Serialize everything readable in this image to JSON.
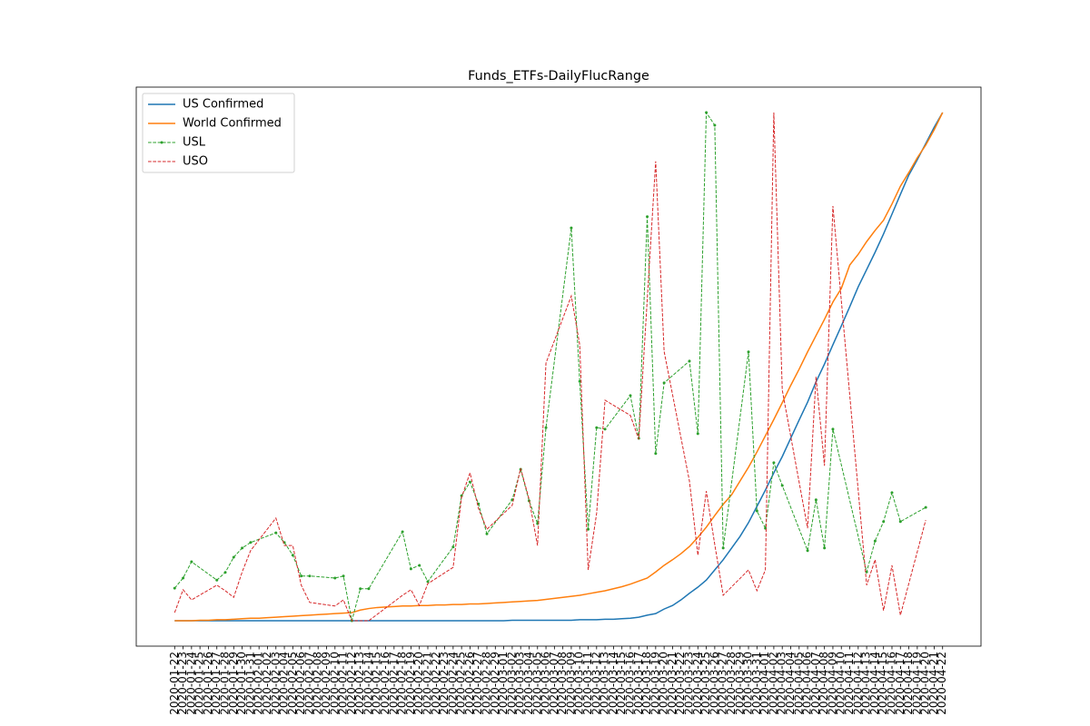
{
  "chart_data": {
    "type": "line",
    "title": "Funds_ETFs-DailyFlucRange",
    "categories": [
      "2020-01-22",
      "2020-01-23",
      "2020-01-24",
      "2020-01-25",
      "2020-01-26",
      "2020-01-27",
      "2020-01-28",
      "2020-01-29",
      "2020-01-30",
      "2020-01-31",
      "2020-02-01",
      "2020-02-02",
      "2020-02-03",
      "2020-02-04",
      "2020-02-05",
      "2020-02-06",
      "2020-02-07",
      "2020-02-08",
      "2020-02-09",
      "2020-02-10",
      "2020-02-11",
      "2020-02-12",
      "2020-02-13",
      "2020-02-14",
      "2020-02-15",
      "2020-02-16",
      "2020-02-17",
      "2020-02-18",
      "2020-02-19",
      "2020-02-20",
      "2020-02-21",
      "2020-02-22",
      "2020-02-23",
      "2020-02-24",
      "2020-02-25",
      "2020-02-26",
      "2020-02-27",
      "2020-02-28",
      "2020-02-29",
      "2020-03-01",
      "2020-03-02",
      "2020-03-03",
      "2020-03-04",
      "2020-03-05",
      "2020-03-06",
      "2020-03-07",
      "2020-03-08",
      "2020-03-09",
      "2020-03-10",
      "2020-03-11",
      "2020-03-12",
      "2020-03-13",
      "2020-03-14",
      "2020-03-15",
      "2020-03-16",
      "2020-03-17",
      "2020-03-18",
      "2020-03-19",
      "2020-03-20",
      "2020-03-21",
      "2020-03-22",
      "2020-03-23",
      "2020-03-24",
      "2020-03-25",
      "2020-03-26",
      "2020-03-27",
      "2020-03-28",
      "2020-03-29",
      "2020-03-30",
      "2020-03-31",
      "2020-04-01",
      "2020-04-02",
      "2020-04-03",
      "2020-04-04",
      "2020-04-05",
      "2020-04-06",
      "2020-04-07",
      "2020-04-08",
      "2020-04-09",
      "2020-04-10",
      "2020-04-11",
      "2020-04-12",
      "2020-04-13",
      "2020-04-14",
      "2020-04-15",
      "2020-04-16",
      "2020-04-17",
      "2020-04-18",
      "2020-04-19",
      "2020-04-20",
      "2020-04-21",
      "2020-04-22"
    ],
    "ylim": [
      -5,
      105
    ],
    "legend": "upper left",
    "series": [
      {
        "name": "US Confirmed",
        "color": "#1f77b4",
        "style": "solid",
        "values": [
          0,
          0,
          0,
          0,
          0,
          0,
          0,
          0,
          0,
          0,
          0,
          0,
          0,
          0,
          0,
          0,
          0,
          0,
          0,
          0,
          0,
          0,
          0,
          0,
          0,
          0,
          0,
          0,
          0,
          0,
          0,
          0,
          0,
          0,
          0,
          0,
          0,
          0,
          0,
          0,
          0.1,
          0.1,
          0.1,
          0.1,
          0.1,
          0.1,
          0.1,
          0.1,
          0.2,
          0.2,
          0.2,
          0.3,
          0.3,
          0.4,
          0.5,
          0.7,
          1.1,
          1.4,
          2.3,
          3.0,
          4.1,
          5.4,
          6.6,
          8.0,
          10.0,
          12.0,
          14.3,
          16.6,
          19.3,
          22.5,
          25.7,
          29.1,
          32.3,
          35.9,
          39.5,
          43.0,
          47.0,
          50.5,
          54.3,
          58.0,
          61.8,
          65.7,
          69.1,
          72.5,
          76.1,
          80.0,
          83.9,
          87.7,
          90.7,
          93.9,
          97.1,
          100
        ]
      },
      {
        "name": "World Confirmed",
        "color": "#ff7f0e",
        "style": "solid",
        "values": [
          0,
          0,
          0,
          0.1,
          0.1,
          0.2,
          0.2,
          0.3,
          0.4,
          0.5,
          0.5,
          0.6,
          0.7,
          0.8,
          0.9,
          1.0,
          1.1,
          1.2,
          1.3,
          1.4,
          1.5,
          1.6,
          2.1,
          2.4,
          2.6,
          2.7,
          2.8,
          2.9,
          2.9,
          3.0,
          3.0,
          3.1,
          3.1,
          3.2,
          3.2,
          3.3,
          3.3,
          3.4,
          3.5,
          3.6,
          3.7,
          3.8,
          3.9,
          4.0,
          4.2,
          4.4,
          4.6,
          4.8,
          5.0,
          5.3,
          5.6,
          5.9,
          6.3,
          6.7,
          7.2,
          7.8,
          8.4,
          9.6,
          10.9,
          12.0,
          13.2,
          14.6,
          16.4,
          18.4,
          20.7,
          22.9,
          24.8,
          27.5,
          30.2,
          33.2,
          36.4,
          39.6,
          42.9,
          46.3,
          49.5,
          52.9,
          56.1,
          59.3,
          62.7,
          65.4,
          70.0,
          72.1,
          74.6,
          76.8,
          78.8,
          82.0,
          85.5,
          88.2,
          91.1,
          93.6,
          96.6,
          100
        ]
      },
      {
        "name": "USL",
        "color": "#2ca02c",
        "style": "dashed",
        "marker": true,
        "x": [
          "2020-01-22",
          "2020-01-23",
          "2020-01-24",
          "2020-01-27",
          "2020-01-28",
          "2020-01-29",
          "2020-01-30",
          "2020-01-31",
          "2020-02-03",
          "2020-02-04",
          "2020-02-05",
          "2020-02-06",
          "2020-02-07",
          "2020-02-10",
          "2020-02-11",
          "2020-02-12",
          "2020-02-13",
          "2020-02-14",
          "2020-02-18",
          "2020-02-19",
          "2020-02-20",
          "2020-02-21",
          "2020-02-24",
          "2020-02-25",
          "2020-02-26",
          "2020-02-27",
          "2020-02-28",
          "2020-03-02",
          "2020-03-03",
          "2020-03-04",
          "2020-03-05",
          "2020-03-06",
          "2020-03-09",
          "2020-03-10",
          "2020-03-11",
          "2020-03-12",
          "2020-03-13",
          "2020-03-16",
          "2020-03-17",
          "2020-03-18",
          "2020-03-19",
          "2020-03-20",
          "2020-03-23",
          "2020-03-24",
          "2020-03-25",
          "2020-03-26",
          "2020-03-27",
          "2020-03-30",
          "2020-03-31",
          "2020-04-01",
          "2020-04-02",
          "2020-04-03",
          "2020-04-06",
          "2020-04-07",
          "2020-04-08",
          "2020-04-09",
          "2020-04-13",
          "2020-04-14",
          "2020-04-15",
          "2020-04-16",
          "2020-04-17",
          "2020-04-20"
        ],
        "values": [
          6.4,
          8.4,
          11.6,
          8.0,
          9.5,
          12.5,
          14.3,
          15.4,
          17.3,
          15.4,
          12.9,
          8.8,
          8.8,
          8.4,
          8.8,
          0,
          6.3,
          6.3,
          17.5,
          10.2,
          10.9,
          7.7,
          14.5,
          24.6,
          27.3,
          23.0,
          17.1,
          23.8,
          29.8,
          23.6,
          19.1,
          38.0,
          77.3,
          47.1,
          18.0,
          38.0,
          37.7,
          44.3,
          35.9,
          79.5,
          32.9,
          46.8,
          51.1,
          36.8,
          100,
          97.5,
          14.3,
          52.9,
          21.6,
          18.2,
          31.1,
          26.6,
          13.8,
          23.8,
          14.3,
          37.7,
          9.6,
          15.7,
          19.5,
          25.2,
          19.5,
          22.3
        ]
      },
      {
        "name": "USO",
        "color": "#d62728",
        "style": "dashed",
        "marker": false,
        "x": [
          "2020-01-22",
          "2020-01-23",
          "2020-01-24",
          "2020-01-27",
          "2020-01-28",
          "2020-01-29",
          "2020-01-30",
          "2020-01-31",
          "2020-02-03",
          "2020-02-04",
          "2020-02-05",
          "2020-02-06",
          "2020-02-07",
          "2020-02-10",
          "2020-02-11",
          "2020-02-12",
          "2020-02-13",
          "2020-02-14",
          "2020-02-18",
          "2020-02-19",
          "2020-02-20",
          "2020-02-21",
          "2020-02-24",
          "2020-02-25",
          "2020-02-26",
          "2020-02-27",
          "2020-02-28",
          "2020-03-02",
          "2020-03-03",
          "2020-03-04",
          "2020-03-05",
          "2020-03-06",
          "2020-03-09",
          "2020-03-10",
          "2020-03-11",
          "2020-03-12",
          "2020-03-13",
          "2020-03-16",
          "2020-03-17",
          "2020-03-18",
          "2020-03-19",
          "2020-03-20",
          "2020-03-23",
          "2020-03-24",
          "2020-03-25",
          "2020-03-26",
          "2020-03-27",
          "2020-03-30",
          "2020-03-31",
          "2020-04-01",
          "2020-04-02",
          "2020-04-03",
          "2020-04-06",
          "2020-04-07",
          "2020-04-08",
          "2020-04-09",
          "2020-04-13",
          "2020-04-14",
          "2020-04-15",
          "2020-04-16",
          "2020-04-17",
          "2020-04-20"
        ],
        "values": [
          1.6,
          6.1,
          4.1,
          7.0,
          5.9,
          4.6,
          9.6,
          13.8,
          20.2,
          14.8,
          14.8,
          7.0,
          3.6,
          2.9,
          4.1,
          0,
          0,
          0,
          5.0,
          6.1,
          3.0,
          7.3,
          10.5,
          24.3,
          29.1,
          22.1,
          18.0,
          22.7,
          30.0,
          23.9,
          14.8,
          50.7,
          63.9,
          54.3,
          10.0,
          21.1,
          43.4,
          40.4,
          35.7,
          63.2,
          90.4,
          53.0,
          27.5,
          12.9,
          25.5,
          15.0,
          5.0,
          10.0,
          5.9,
          10.0,
          100,
          45.4,
          18.2,
          48.0,
          30.5,
          81.6,
          7.0,
          12.0,
          2.0,
          10.9,
          1.1,
          19.8
        ]
      }
    ]
  }
}
